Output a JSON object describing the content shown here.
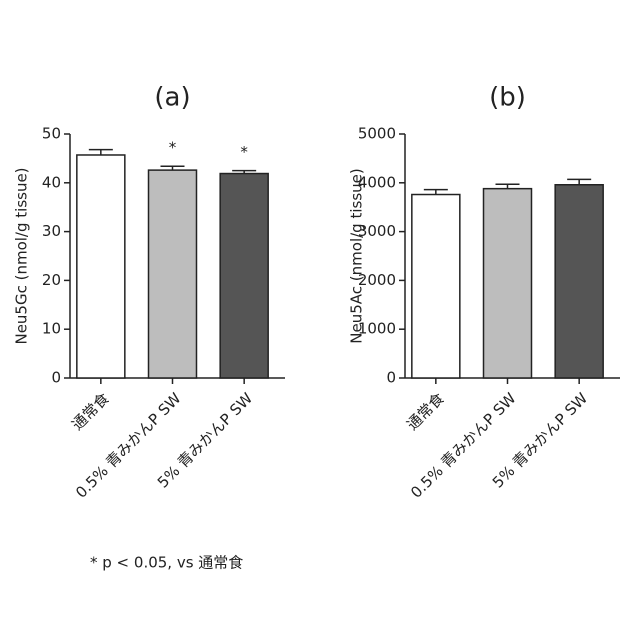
{
  "chart_data": [
    {
      "type": "bar",
      "title": "(a)",
      "y_label": "Neu5Gc (nmol/g tissue)",
      "categories": [
        "通常食",
        "0.5% 青みかんP SW",
        "5% 青みかんP SW"
      ],
      "values": [
        45.7,
        42.6,
        41.9
      ],
      "errors": [
        1.1,
        0.8,
        0.6
      ],
      "colors": [
        "#ffffff",
        "#bdbdbd",
        "#555555"
      ],
      "significance": [
        null,
        "*",
        "*"
      ],
      "ylim": [
        0,
        50
      ],
      "yticks": [
        0,
        10,
        20,
        30,
        40,
        50
      ]
    },
    {
      "type": "bar",
      "title": "(b)",
      "y_label": "Neu5Ac (nmol/g tissue)",
      "categories": [
        "通常食",
        "0.5% 青みかんP SW",
        "5% 青みかんP SW"
      ],
      "values": [
        3760,
        3880,
        3960
      ],
      "errors": [
        100,
        90,
        110
      ],
      "colors": [
        "#ffffff",
        "#bdbdbd",
        "#555555"
      ],
      "ylim": [
        0,
        5000
      ],
      "yticks": [
        0,
        1000,
        2000,
        3000,
        4000,
        5000
      ]
    }
  ],
  "footnote": "* p < 0.05, vs 通常食"
}
